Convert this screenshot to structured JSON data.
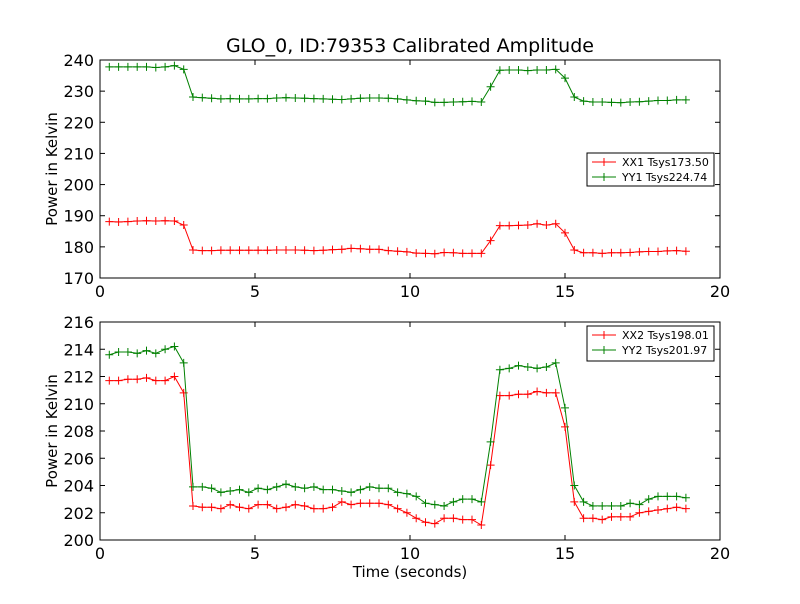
{
  "title": "GLO_0, ID:79353 Calibrated Amplitude",
  "chart_data": [
    {
      "type": "line",
      "ylabel": "Power in Kelvin",
      "xlabel": "",
      "xlim": [
        0,
        20
      ],
      "ylim": [
        170,
        240
      ],
      "xticks": [
        "0",
        "5",
        "10",
        "15",
        "20"
      ],
      "yticks": [
        "170",
        "180",
        "190",
        "200",
        "210",
        "220",
        "230",
        "240"
      ],
      "grid": false,
      "legend_position": "right",
      "x": [
        0.3,
        0.6,
        0.9,
        1.2,
        1.5,
        1.8,
        2.1,
        2.4,
        2.7,
        3.0,
        3.3,
        3.6,
        3.9,
        4.2,
        4.5,
        4.8,
        5.1,
        5.4,
        5.7,
        6.0,
        6.3,
        6.6,
        6.9,
        7.2,
        7.5,
        7.8,
        8.1,
        8.4,
        8.7,
        9.0,
        9.3,
        9.6,
        9.9,
        10.2,
        10.5,
        10.8,
        11.1,
        11.4,
        11.7,
        12.0,
        12.3,
        12.6,
        12.9,
        13.2,
        13.5,
        13.8,
        14.1,
        14.4,
        14.7,
        15.0,
        15.3,
        15.6,
        15.9,
        16.2,
        16.5,
        16.8,
        17.1,
        17.4,
        17.7,
        18.0,
        18.3,
        18.6,
        18.9
      ],
      "series": [
        {
          "name": "XX1 Tsys173.50",
          "color": "#ff0000",
          "values": [
            188.1,
            188.0,
            188.1,
            188.3,
            188.4,
            188.3,
            188.4,
            188.3,
            187.0,
            179.0,
            178.8,
            178.8,
            178.9,
            178.9,
            178.9,
            178.9,
            178.9,
            178.9,
            179.0,
            179.0,
            179.0,
            178.9,
            178.8,
            178.9,
            179.1,
            179.2,
            179.5,
            179.4,
            179.2,
            179.2,
            178.8,
            178.6,
            178.4,
            178.0,
            177.9,
            177.8,
            178.2,
            178.1,
            177.9,
            177.9,
            177.9,
            182.0,
            186.8,
            186.8,
            186.9,
            187.0,
            187.4,
            187.0,
            187.4,
            184.5,
            179.0,
            178.1,
            178.1,
            177.9,
            178.1,
            178.1,
            178.2,
            178.4,
            178.5,
            178.5,
            178.7,
            178.8,
            178.6
          ]
        },
        {
          "name": "YY1 Tsys224.74",
          "color": "#008000",
          "values": [
            237.8,
            237.8,
            237.8,
            237.8,
            237.8,
            237.6,
            237.8,
            238.2,
            237.0,
            228.1,
            227.9,
            227.7,
            227.5,
            227.6,
            227.5,
            227.5,
            227.6,
            227.6,
            227.8,
            227.9,
            227.8,
            227.7,
            227.6,
            227.5,
            227.4,
            227.3,
            227.5,
            227.7,
            227.8,
            227.8,
            227.7,
            227.5,
            227.2,
            226.9,
            226.8,
            226.4,
            226.4,
            226.5,
            226.6,
            226.7,
            226.5,
            231.4,
            236.7,
            236.8,
            236.8,
            236.6,
            236.8,
            236.8,
            237.0,
            234.2,
            228.1,
            226.8,
            226.5,
            226.5,
            226.4,
            226.3,
            226.5,
            226.6,
            226.8,
            227.0,
            227.0,
            227.2,
            227.2
          ]
        }
      ]
    },
    {
      "type": "line",
      "ylabel": "Power in Kelvin",
      "xlabel": "Time (seconds)",
      "xlim": [
        0,
        20
      ],
      "ylim": [
        200,
        216
      ],
      "xticks": [
        "0",
        "5",
        "10",
        "15",
        "20"
      ],
      "yticks": [
        "200",
        "202",
        "204",
        "206",
        "208",
        "210",
        "212",
        "214",
        "216"
      ],
      "grid": false,
      "legend_position": "top-right",
      "x": [
        0.3,
        0.6,
        0.9,
        1.2,
        1.5,
        1.8,
        2.1,
        2.4,
        2.7,
        3.0,
        3.3,
        3.6,
        3.9,
        4.2,
        4.5,
        4.8,
        5.1,
        5.4,
        5.7,
        6.0,
        6.3,
        6.6,
        6.9,
        7.2,
        7.5,
        7.8,
        8.1,
        8.4,
        8.7,
        9.0,
        9.3,
        9.6,
        9.9,
        10.2,
        10.5,
        10.8,
        11.1,
        11.4,
        11.7,
        12.0,
        12.3,
        12.6,
        12.9,
        13.2,
        13.5,
        13.8,
        14.1,
        14.4,
        14.7,
        15.0,
        15.3,
        15.6,
        15.9,
        16.2,
        16.5,
        16.8,
        17.1,
        17.4,
        17.7,
        18.0,
        18.3,
        18.6,
        18.9
      ],
      "series": [
        {
          "name": "XX2 Tsys198.01",
          "color": "#ff0000",
          "values": [
            211.7,
            211.7,
            211.8,
            211.8,
            211.9,
            211.7,
            211.7,
            212.0,
            210.8,
            202.5,
            202.4,
            202.4,
            202.3,
            202.6,
            202.4,
            202.3,
            202.6,
            202.6,
            202.3,
            202.4,
            202.6,
            202.5,
            202.3,
            202.3,
            202.4,
            202.8,
            202.6,
            202.7,
            202.7,
            202.7,
            202.6,
            202.3,
            202.0,
            201.6,
            201.3,
            201.2,
            201.6,
            201.6,
            201.5,
            201.5,
            201.1,
            205.5,
            210.6,
            210.6,
            210.7,
            210.7,
            210.9,
            210.8,
            210.8,
            208.3,
            202.8,
            201.6,
            201.6,
            201.5,
            201.7,
            201.7,
            201.7,
            202.0,
            202.1,
            202.2,
            202.3,
            202.4,
            202.3
          ]
        },
        {
          "name": "YY2 Tsys201.97",
          "color": "#008000",
          "values": [
            213.6,
            213.8,
            213.8,
            213.7,
            213.9,
            213.7,
            214.0,
            214.2,
            213.0,
            203.9,
            203.9,
            203.8,
            203.5,
            203.6,
            203.7,
            203.5,
            203.8,
            203.7,
            203.9,
            204.1,
            203.9,
            203.8,
            203.9,
            203.7,
            203.7,
            203.6,
            203.5,
            203.7,
            203.9,
            203.8,
            203.8,
            203.5,
            203.4,
            203.2,
            202.7,
            202.6,
            202.5,
            202.8,
            203.0,
            203.0,
            202.8,
            207.2,
            212.5,
            212.6,
            212.8,
            212.7,
            212.6,
            212.7,
            213.0,
            209.7,
            204.0,
            202.8,
            202.5,
            202.5,
            202.5,
            202.5,
            202.7,
            202.6,
            203.0,
            203.2,
            203.2,
            203.2,
            203.1
          ]
        }
      ]
    }
  ]
}
